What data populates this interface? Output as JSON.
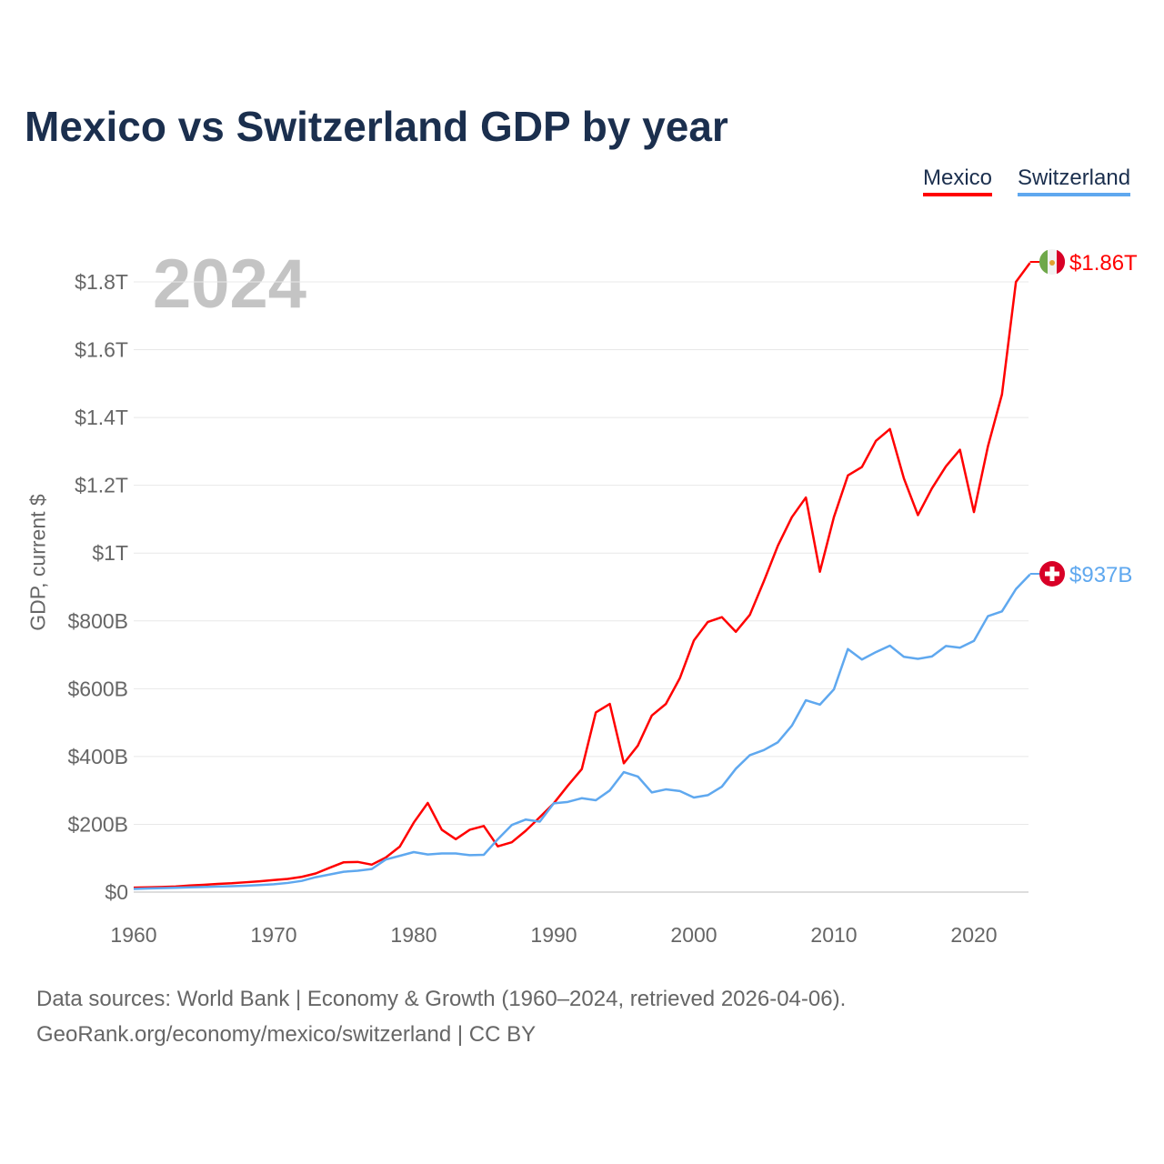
{
  "title": "Mexico vs Switzerland GDP by year",
  "legend": [
    "Mexico",
    "Switzerland"
  ],
  "footer": {
    "line1": "Data sources: World Bank | Economy & Growth (1960–2024, retrieved 2026-04-06).",
    "line2": "GeoRank.org/economy/mexico/switzerland | CC BY"
  },
  "chart_data": {
    "type": "line",
    "title": "Mexico vs Switzerland GDP by year",
    "xlabel": "",
    "ylabel": "GDP, current $",
    "current_year_label": "2024",
    "xlim": [
      1960,
      2024
    ],
    "ylim": [
      0,
      1900
    ],
    "y_units": "billions USD",
    "x_ticks": [
      "1960",
      "1970",
      "1980",
      "1990",
      "2000",
      "2010",
      "2020"
    ],
    "y_ticks": [
      {
        "v": 0,
        "label": "$0"
      },
      {
        "v": 200,
        "label": "$200B"
      },
      {
        "v": 400,
        "label": "$400B"
      },
      {
        "v": 600,
        "label": "$600B"
      },
      {
        "v": 800,
        "label": "$800B"
      },
      {
        "v": 1000,
        "label": "$1T"
      },
      {
        "v": 1200,
        "label": "$1.2T"
      },
      {
        "v": 1400,
        "label": "$1.4T"
      },
      {
        "v": 1600,
        "label": "$1.6T"
      },
      {
        "v": 1800,
        "label": "$1.8T"
      }
    ],
    "grid": true,
    "legend_position": "top-right",
    "x_start": 1960,
    "series": [
      {
        "name": "Mexico",
        "color": "#ff0000",
        "end_label": "$1.86T",
        "flag": "mexico-flag",
        "values": [
          13,
          14,
          15,
          16.6,
          19.5,
          21.3,
          24,
          26,
          29,
          32,
          35.5,
          39,
          45,
          55,
          72,
          88,
          89,
          81,
          102,
          134,
          205,
          263,
          184,
          156,
          184,
          195,
          135,
          147,
          181,
          221,
          262,
          314,
          363,
          530,
          555,
          380,
          432,
          521,
          555,
          631,
          742,
          797,
          811,
          768,
          818,
          917,
          1022,
          1106,
          1164,
          945,
          1106,
          1229,
          1254,
          1331,
          1366,
          1220,
          1112,
          1191,
          1256,
          1305,
          1121,
          1315,
          1468,
          1800,
          1856
        ]
      },
      {
        "name": "Switzerland",
        "color": "#5fa8ef",
        "end_label": "$937B",
        "flag": "switzerland-flag",
        "values": [
          9.5,
          10.7,
          11.8,
          12.9,
          14.2,
          15.2,
          16.3,
          17.5,
          18.9,
          20.7,
          23,
          27,
          33,
          44,
          52,
          60,
          63,
          68,
          96,
          107,
          118,
          111,
          114,
          114,
          109,
          110,
          156,
          198,
          214,
          208,
          262,
          266,
          277,
          271,
          300,
          354,
          341,
          294,
          303,
          298,
          279,
          286,
          311,
          364,
          404,
          419,
          442,
          491,
          566,
          553,
          598,
          717,
          686,
          708,
          727,
          694,
          688,
          695,
          726,
          721,
          741,
          814,
          828,
          894,
          937
        ]
      }
    ]
  }
}
